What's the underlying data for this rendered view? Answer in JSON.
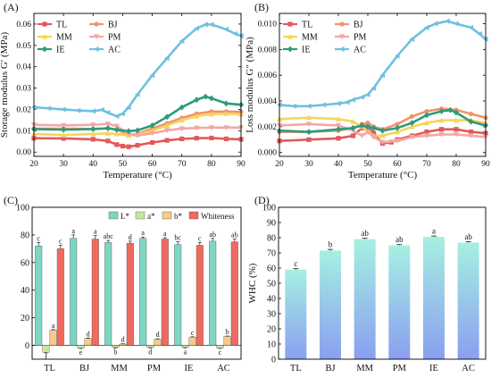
{
  "chart_data": [
    {
      "panel": "(A)",
      "type": "line",
      "xlabel": "Temperature (°C)",
      "ylabel": "Storage modulus G′ (MPa)",
      "xlim": [
        20,
        90
      ],
      "ylim": [
        -0.002,
        0.065
      ],
      "xticks": [
        20,
        30,
        40,
        50,
        60,
        70,
        80,
        90
      ],
      "yticks": [
        0.0,
        0.01,
        0.02,
        0.03,
        0.04,
        0.05,
        0.06
      ],
      "ytick_labels": [
        "0.00",
        "0.01",
        "0.02",
        "0.03",
        "0.04",
        "0.05",
        "0.06"
      ],
      "legend_position": "top-left",
      "series": [
        {
          "name": "TL",
          "color": "#e05a5a",
          "marker": "square",
          "x": [
            20,
            30,
            40,
            45,
            48,
            50,
            52,
            55,
            60,
            65,
            70,
            75,
            80,
            85,
            90
          ],
          "y": [
            0.0065,
            0.0064,
            0.006,
            0.0052,
            0.0035,
            0.0028,
            0.0025,
            0.0032,
            0.0045,
            0.0055,
            0.0062,
            0.0065,
            0.0066,
            0.0062,
            0.006
          ]
        },
        {
          "name": "BJ",
          "color": "#f0936b",
          "marker": "circle",
          "x": [
            20,
            30,
            40,
            45,
            48,
            52,
            55,
            60,
            65,
            70,
            75,
            80,
            85,
            90
          ],
          "y": [
            0.011,
            0.011,
            0.0108,
            0.0112,
            0.0105,
            0.008,
            0.0085,
            0.011,
            0.0135,
            0.016,
            0.018,
            0.019,
            0.019,
            0.0188
          ]
        },
        {
          "name": "MM",
          "color": "#f5d55a",
          "marker": "triangle-up",
          "x": [
            20,
            30,
            40,
            45,
            48,
            52,
            55,
            60,
            65,
            70,
            75,
            80,
            85,
            90
          ],
          "y": [
            0.0085,
            0.008,
            0.0085,
            0.0088,
            0.0085,
            0.0078,
            0.0082,
            0.01,
            0.0125,
            0.015,
            0.0168,
            0.0178,
            0.018,
            0.0178
          ]
        },
        {
          "name": "PM",
          "color": "#f4a6a6",
          "marker": "triangle-down",
          "x": [
            20,
            30,
            40,
            45,
            48,
            52,
            55,
            60,
            65,
            70,
            75,
            80,
            85,
            90
          ],
          "y": [
            0.0128,
            0.0125,
            0.0128,
            0.0132,
            0.0122,
            0.0085,
            0.0078,
            0.0088,
            0.0102,
            0.011,
            0.0113,
            0.0115,
            0.0115,
            0.0115
          ]
        },
        {
          "name": "IE",
          "color": "#2f9a7a",
          "marker": "diamond",
          "x": [
            20,
            30,
            40,
            45,
            48,
            52,
            55,
            60,
            65,
            70,
            75,
            78,
            80,
            85,
            90
          ],
          "y": [
            0.0108,
            0.0105,
            0.0108,
            0.0112,
            0.0105,
            0.0098,
            0.0102,
            0.0125,
            0.0165,
            0.021,
            0.0245,
            0.026,
            0.0252,
            0.0228,
            0.0222
          ]
        },
        {
          "name": "AC",
          "color": "#6fc0e0",
          "marker": "triangle-left",
          "x": [
            20,
            25,
            30,
            35,
            40,
            43,
            45,
            48,
            50,
            52,
            55,
            60,
            65,
            70,
            75,
            78,
            80,
            85,
            88,
            90
          ],
          "y": [
            0.021,
            0.0205,
            0.02,
            0.0195,
            0.0192,
            0.0198,
            0.0185,
            0.0168,
            0.018,
            0.021,
            0.027,
            0.036,
            0.044,
            0.052,
            0.058,
            0.0598,
            0.0598,
            0.0575,
            0.0555,
            0.0545
          ]
        }
      ]
    },
    {
      "panel": "(B)",
      "type": "line",
      "xlabel": "Temperature (°C)",
      "ylabel": "Loss modulus G″ (MPa)",
      "xlim": [
        20,
        90
      ],
      "ylim": [
        -0.0003,
        0.0108
      ],
      "xticks": [
        20,
        30,
        40,
        50,
        60,
        70,
        80,
        90
      ],
      "yticks": [
        0.0,
        0.002,
        0.004,
        0.006,
        0.008,
        0.01
      ],
      "ytick_labels": [
        "0.000",
        "0.002",
        "0.004",
        "0.006",
        "0.008",
        "0.010"
      ],
      "legend_position": "top-left",
      "series": [
        {
          "name": "TL",
          "color": "#e05a5a",
          "marker": "square",
          "x": [
            20,
            30,
            40,
            45,
            48,
            50,
            52,
            55,
            58,
            60,
            65,
            70,
            75,
            80,
            85,
            90
          ],
          "y": [
            0.0009,
            0.001,
            0.0011,
            0.0013,
            0.0019,
            0.002,
            0.0015,
            0.0007,
            0.0008,
            0.001,
            0.0013,
            0.0016,
            0.0018,
            0.0018,
            0.0016,
            0.0015
          ]
        },
        {
          "name": "BJ",
          "color": "#f0936b",
          "marker": "circle",
          "x": [
            20,
            30,
            40,
            45,
            48,
            50,
            52,
            55,
            60,
            65,
            70,
            75,
            80,
            85,
            90
          ],
          "y": [
            0.0016,
            0.0016,
            0.0017,
            0.0019,
            0.0022,
            0.0023,
            0.002,
            0.0018,
            0.0022,
            0.0028,
            0.0032,
            0.0034,
            0.0033,
            0.003,
            0.0027
          ]
        },
        {
          "name": "MM",
          "color": "#f5d55a",
          "marker": "triangle-up",
          "x": [
            20,
            30,
            40,
            45,
            48,
            52,
            55,
            60,
            65,
            70,
            75,
            80,
            85,
            90
          ],
          "y": [
            0.0026,
            0.0027,
            0.0026,
            0.0024,
            0.002,
            0.0013,
            0.0013,
            0.0016,
            0.002,
            0.0023,
            0.0025,
            0.0025,
            0.0025,
            0.0023
          ]
        },
        {
          "name": "PM",
          "color": "#f4a6a6",
          "marker": "triangle-down",
          "x": [
            20,
            30,
            40,
            45,
            48,
            50,
            52,
            55,
            60,
            65,
            70,
            75,
            80,
            85,
            90
          ],
          "y": [
            0.0021,
            0.0022,
            0.0021,
            0.0017,
            0.0013,
            0.0016,
            0.0012,
            0.0008,
            0.0009,
            0.0012,
            0.0013,
            0.0014,
            0.0014,
            0.0013,
            0.0012
          ]
        },
        {
          "name": "IE",
          "color": "#2f9a7a",
          "marker": "diamond",
          "x": [
            20,
            30,
            40,
            45,
            48,
            50,
            52,
            55,
            60,
            65,
            70,
            75,
            78,
            80,
            85,
            90
          ],
          "y": [
            0.0017,
            0.0016,
            0.0018,
            0.0019,
            0.0021,
            0.002,
            0.0019,
            0.0017,
            0.0019,
            0.0023,
            0.0029,
            0.0032,
            0.0033,
            0.0031,
            0.0024,
            0.0021
          ]
        },
        {
          "name": "AC",
          "color": "#6fc0e0",
          "marker": "triangle-left",
          "x": [
            20,
            25,
            30,
            35,
            40,
            43,
            45,
            48,
            50,
            52,
            55,
            60,
            65,
            70,
            73,
            77,
            80,
            85,
            88,
            90
          ],
          "y": [
            0.0037,
            0.0036,
            0.0036,
            0.0037,
            0.0038,
            0.0039,
            0.0041,
            0.0043,
            0.0045,
            0.005,
            0.006,
            0.0075,
            0.0088,
            0.0097,
            0.01,
            0.0102,
            0.01,
            0.0097,
            0.0092,
            0.0088
          ]
        }
      ]
    },
    {
      "panel": "(C)",
      "type": "bar",
      "categories": [
        "TL",
        "BJ",
        "MM",
        "PM",
        "IE",
        "AC"
      ],
      "ylim": [
        -10,
        100
      ],
      "yticks": [
        0,
        20,
        40,
        60,
        80,
        100
      ],
      "legend_position": "top",
      "series": [
        {
          "name": "L*",
          "color": "#7dd6c2",
          "values": [
            72.0,
            77.5,
            74.5,
            77.5,
            73.0,
            75.5
          ],
          "errors": [
            2.5,
            2.5,
            1.5,
            1.0,
            2.0,
            2.0
          ],
          "letters": [
            "c",
            "a",
            "abc",
            "a",
            "bc",
            "ab"
          ]
        },
        {
          "name": "a*",
          "color": "#c8e6a0",
          "values": [
            -5.0,
            -2.0,
            -1.5,
            -1.5,
            -1.5,
            -2.0
          ],
          "errors": [
            0.5,
            0.3,
            0.3,
            0.3,
            0.3,
            0.3
          ],
          "letters": [
            "f",
            "e",
            "b",
            "d",
            "a",
            "c"
          ]
        },
        {
          "name": "b*",
          "color": "#f7c98a",
          "values": [
            11.0,
            5.0,
            1.0,
            4.5,
            6.0,
            6.5
          ],
          "errors": [
            0.5,
            0.3,
            0.2,
            0.3,
            0.3,
            0.3
          ],
          "letters": [
            "a",
            "d",
            "d",
            "d",
            "c",
            "b"
          ]
        },
        {
          "name": "Whiteness",
          "color": "#ef6a5e",
          "values": [
            70.0,
            77.0,
            74.0,
            77.0,
            72.5,
            75.0
          ],
          "errors": [
            2.5,
            2.5,
            1.5,
            1.0,
            2.0,
            2.0
          ],
          "letters": [
            "c",
            "a",
            "d",
            "a",
            "c",
            "ab"
          ]
        }
      ]
    },
    {
      "panel": "(D)",
      "type": "bar",
      "ylabel": "WHC (%)",
      "categories": [
        "TL",
        "BJ",
        "MM",
        "PM",
        "IE",
        "AC"
      ],
      "ylim": [
        0,
        100
      ],
      "yticks": [
        0,
        10,
        20,
        30,
        40,
        50,
        60,
        70,
        80,
        90,
        100
      ],
      "values": [
        59.0,
        71.5,
        79.0,
        75.0,
        80.5,
        76.8
      ],
      "errors": [
        0.6,
        0.8,
        0.6,
        0.5,
        0.6,
        0.6
      ],
      "letters": [
        "c",
        "b",
        "ab",
        "ab",
        "a",
        "ab"
      ],
      "gradient": [
        "#8a9ff0",
        "#a6f0e2"
      ]
    }
  ]
}
